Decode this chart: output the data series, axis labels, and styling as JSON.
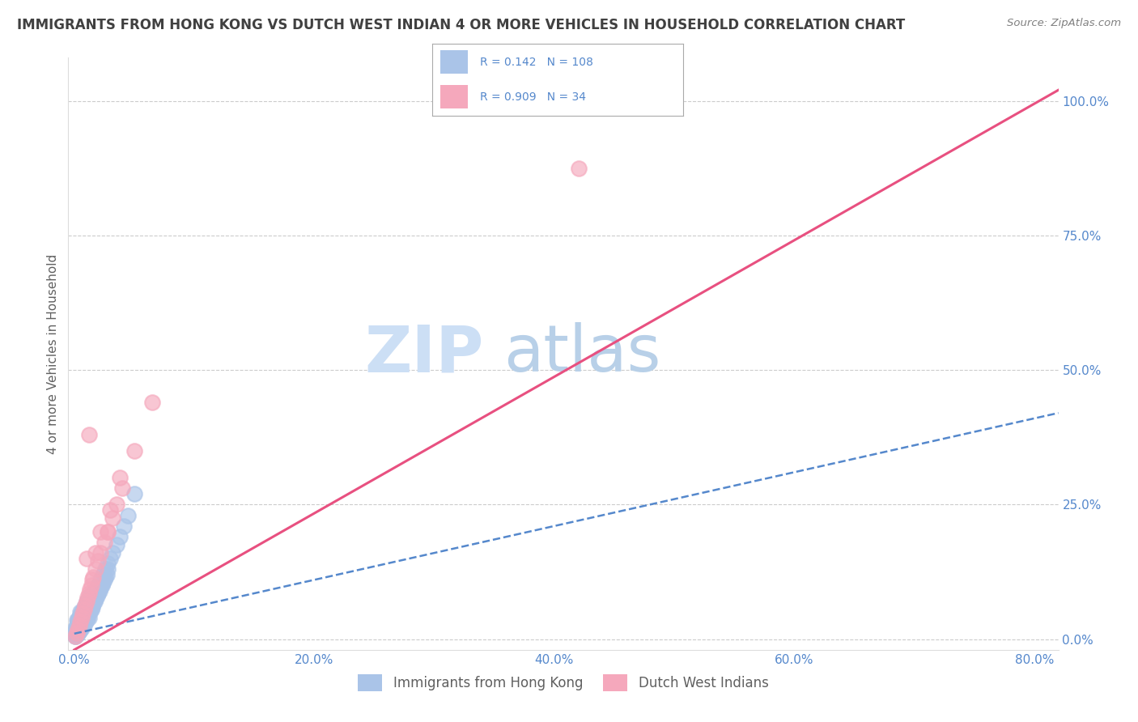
{
  "title": "IMMIGRANTS FROM HONG KONG VS DUTCH WEST INDIAN 4 OR MORE VEHICLES IN HOUSEHOLD CORRELATION CHART",
  "source": "Source: ZipAtlas.com",
  "ylabel": "4 or more Vehicles in Household",
  "xlim": [
    -0.005,
    0.82
  ],
  "ylim": [
    -0.02,
    1.08
  ],
  "xticks": [
    0.0,
    0.2,
    0.4,
    0.6,
    0.8
  ],
  "xticklabels": [
    "0.0%",
    "20.0%",
    "40.0%",
    "60.0%",
    "80.0%"
  ],
  "yticks": [
    0.0,
    0.25,
    0.5,
    0.75,
    1.0
  ],
  "yticklabels": [
    "0.0%",
    "25.0%",
    "50.0%",
    "75.0%",
    "100.0%"
  ],
  "hk_R": 0.142,
  "hk_N": 108,
  "dwi_R": 0.909,
  "dwi_N": 34,
  "hk_color": "#aac4e8",
  "dwi_color": "#f5a8bc",
  "hk_line_color": "#5588cc",
  "dwi_line_color": "#e85080",
  "watermark_zip": "ZIP",
  "watermark_atlas": "atlas",
  "watermark_color_zip": "#ccdff5",
  "watermark_color_atlas": "#b8d0e8",
  "legend_label_hk": "Immigrants from Hong Kong",
  "legend_label_dwi": "Dutch West Indians",
  "background_color": "#ffffff",
  "grid_color": "#cccccc",
  "title_color": "#404040",
  "axis_label_color": "#5588cc",
  "hk_x": [
    0.001,
    0.001,
    0.001,
    0.002,
    0.002,
    0.002,
    0.002,
    0.003,
    0.003,
    0.003,
    0.003,
    0.003,
    0.003,
    0.004,
    0.004,
    0.004,
    0.004,
    0.004,
    0.005,
    0.005,
    0.005,
    0.005,
    0.005,
    0.006,
    0.006,
    0.006,
    0.006,
    0.007,
    0.007,
    0.007,
    0.007,
    0.008,
    0.008,
    0.008,
    0.008,
    0.009,
    0.009,
    0.009,
    0.01,
    0.01,
    0.01,
    0.01,
    0.011,
    0.011,
    0.011,
    0.012,
    0.012,
    0.012,
    0.013,
    0.013,
    0.013,
    0.014,
    0.014,
    0.015,
    0.015,
    0.016,
    0.016,
    0.017,
    0.018,
    0.018,
    0.019,
    0.02,
    0.021,
    0.022,
    0.023,
    0.024,
    0.025,
    0.026,
    0.027,
    0.028,
    0.001,
    0.001,
    0.002,
    0.002,
    0.002,
    0.003,
    0.003,
    0.004,
    0.004,
    0.005,
    0.005,
    0.006,
    0.006,
    0.007,
    0.008,
    0.008,
    0.009,
    0.01,
    0.011,
    0.012,
    0.013,
    0.014,
    0.015,
    0.016,
    0.017,
    0.018,
    0.02,
    0.022,
    0.024,
    0.026,
    0.028,
    0.03,
    0.032,
    0.035,
    0.038,
    0.041,
    0.045,
    0.05
  ],
  "hk_y": [
    0.005,
    0.01,
    0.015,
    0.008,
    0.012,
    0.018,
    0.025,
    0.01,
    0.015,
    0.02,
    0.025,
    0.03,
    0.035,
    0.015,
    0.02,
    0.025,
    0.03,
    0.04,
    0.018,
    0.025,
    0.03,
    0.04,
    0.05,
    0.02,
    0.03,
    0.035,
    0.045,
    0.025,
    0.035,
    0.04,
    0.05,
    0.028,
    0.04,
    0.05,
    0.06,
    0.03,
    0.045,
    0.055,
    0.035,
    0.05,
    0.06,
    0.07,
    0.04,
    0.055,
    0.065,
    0.04,
    0.06,
    0.07,
    0.05,
    0.065,
    0.08,
    0.055,
    0.07,
    0.06,
    0.08,
    0.065,
    0.085,
    0.07,
    0.075,
    0.09,
    0.08,
    0.085,
    0.09,
    0.095,
    0.1,
    0.105,
    0.11,
    0.115,
    0.12,
    0.13,
    0.005,
    0.02,
    0.01,
    0.025,
    0.035,
    0.015,
    0.03,
    0.02,
    0.04,
    0.025,
    0.045,
    0.03,
    0.05,
    0.035,
    0.04,
    0.055,
    0.045,
    0.05,
    0.055,
    0.06,
    0.065,
    0.07,
    0.075,
    0.08,
    0.085,
    0.09,
    0.1,
    0.11,
    0.12,
    0.13,
    0.14,
    0.15,
    0.16,
    0.175,
    0.19,
    0.21,
    0.23,
    0.27
  ],
  "dwi_x": [
    0.001,
    0.002,
    0.003,
    0.004,
    0.005,
    0.006,
    0.007,
    0.008,
    0.009,
    0.01,
    0.011,
    0.012,
    0.013,
    0.014,
    0.016,
    0.018,
    0.02,
    0.022,
    0.025,
    0.028,
    0.032,
    0.035,
    0.04,
    0.028,
    0.015,
    0.01,
    0.012,
    0.018,
    0.022,
    0.03,
    0.038,
    0.05,
    0.065,
    0.42
  ],
  "dwi_y": [
    0.005,
    0.012,
    0.018,
    0.025,
    0.032,
    0.04,
    0.048,
    0.055,
    0.062,
    0.07,
    0.078,
    0.085,
    0.092,
    0.1,
    0.115,
    0.13,
    0.145,
    0.16,
    0.18,
    0.2,
    0.225,
    0.25,
    0.28,
    0.2,
    0.11,
    0.15,
    0.38,
    0.16,
    0.2,
    0.24,
    0.3,
    0.35,
    0.44,
    0.875
  ],
  "hk_trend_x": [
    0.0,
    0.82
  ],
  "hk_trend_y": [
    0.01,
    0.42
  ],
  "dwi_trend_x": [
    0.0,
    0.82
  ],
  "dwi_trend_y": [
    -0.02,
    1.02
  ]
}
